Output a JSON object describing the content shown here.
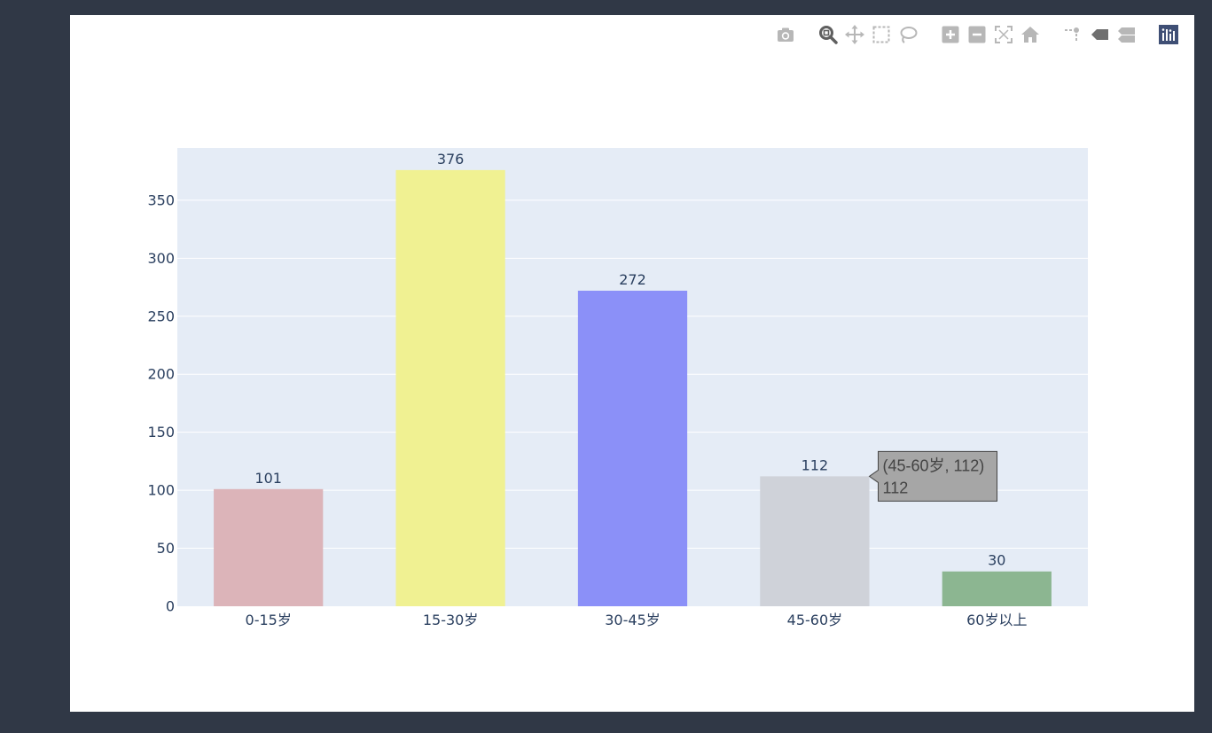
{
  "modebar": {
    "buttons": [
      {
        "name": "camera-icon",
        "group": 0
      },
      {
        "name": "zoom-icon",
        "group": 1,
        "active": true
      },
      {
        "name": "pan-icon",
        "group": 1
      },
      {
        "name": "box-select-icon",
        "group": 1
      },
      {
        "name": "lasso-select-icon",
        "group": 1
      },
      {
        "name": "zoom-in-icon",
        "group": 2
      },
      {
        "name": "zoom-out-icon",
        "group": 2
      },
      {
        "name": "autoscale-icon",
        "group": 2
      },
      {
        "name": "reset-axes-icon",
        "group": 2
      },
      {
        "name": "spike-lines-icon",
        "group": 3
      },
      {
        "name": "hover-closest-icon",
        "group": 3
      },
      {
        "name": "hover-compare-icon",
        "group": 3
      },
      {
        "name": "plotly-logo-icon",
        "group": 4
      }
    ]
  },
  "chart_data": {
    "type": "bar",
    "categories": [
      "0-15岁",
      "15-30岁",
      "30-45岁",
      "45-60岁",
      "60岁以上"
    ],
    "values": [
      101,
      376,
      272,
      112,
      30
    ],
    "colors": [
      "#dcb4b9",
      "#f0f192",
      "#8b90f8",
      "#cfd2d9",
      "#8cb691"
    ],
    "ylim": [
      0,
      395
    ],
    "yticks": [
      0,
      50,
      100,
      150,
      200,
      250,
      300,
      350
    ],
    "grid": true,
    "plot_bgcolor": "#e5ecf6",
    "hover": {
      "category_index": 3,
      "line1": "(45-60岁, 112)",
      "line2": "112",
      "bgcolor": "#a6a6a6",
      "bordercolor": "#444444"
    }
  }
}
